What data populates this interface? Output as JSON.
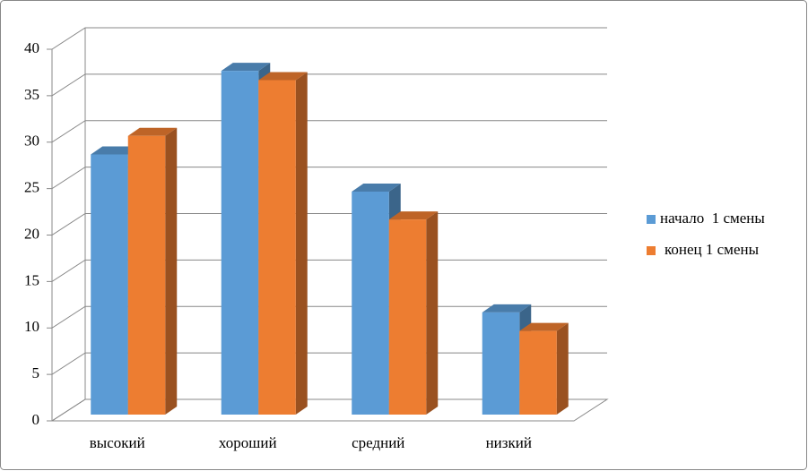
{
  "chart_data": {
    "type": "bar3d",
    "categories": [
      "высокий",
      "хороший",
      "средний",
      "низкий"
    ],
    "series": [
      {
        "name": "начало  1 смены",
        "color": "#5b9bd5",
        "values": [
          28,
          37,
          24,
          11
        ]
      },
      {
        "name": "конец 1 смены",
        "color": "#ed7d31",
        "values": [
          30,
          36,
          21,
          9
        ]
      }
    ],
    "ylim": [
      0,
      40
    ],
    "yticks": [
      0,
      5,
      10,
      15,
      20,
      25,
      30,
      35,
      40
    ],
    "grid": true,
    "legend": "right"
  }
}
